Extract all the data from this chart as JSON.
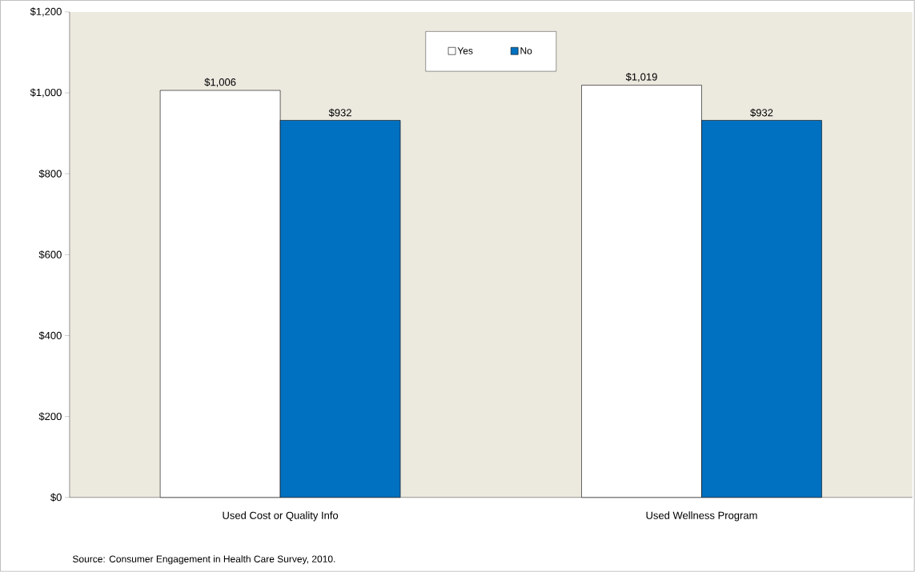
{
  "chart_data": {
    "type": "bar",
    "categories": [
      "Used Cost or Quality Info",
      "Used Wellness Program"
    ],
    "series": [
      {
        "name": "Yes",
        "color": "#ffffff",
        "values": [
          1006,
          1019
        ],
        "value_labels": [
          "$1,006",
          "$1,019"
        ]
      },
      {
        "name": "No",
        "color": "#0070c0",
        "values": [
          932,
          932
        ],
        "value_labels": [
          "$932",
          "$932"
        ]
      }
    ],
    "ylim": [
      0,
      1200
    ],
    "yticks": [
      {
        "value": 0,
        "label": "$0"
      },
      {
        "value": 200,
        "label": "$200"
      },
      {
        "value": 400,
        "label": "$400"
      },
      {
        "value": 600,
        "label": "$600"
      },
      {
        "value": 800,
        "label": "$800"
      },
      {
        "value": 1000,
        "label": "$1,000"
      },
      {
        "value": 1200,
        "label": "$1,200"
      }
    ],
    "legend": "top",
    "annotations": [
      "Source: Consumer Engagement in Health Care Survey, 2010."
    ]
  }
}
